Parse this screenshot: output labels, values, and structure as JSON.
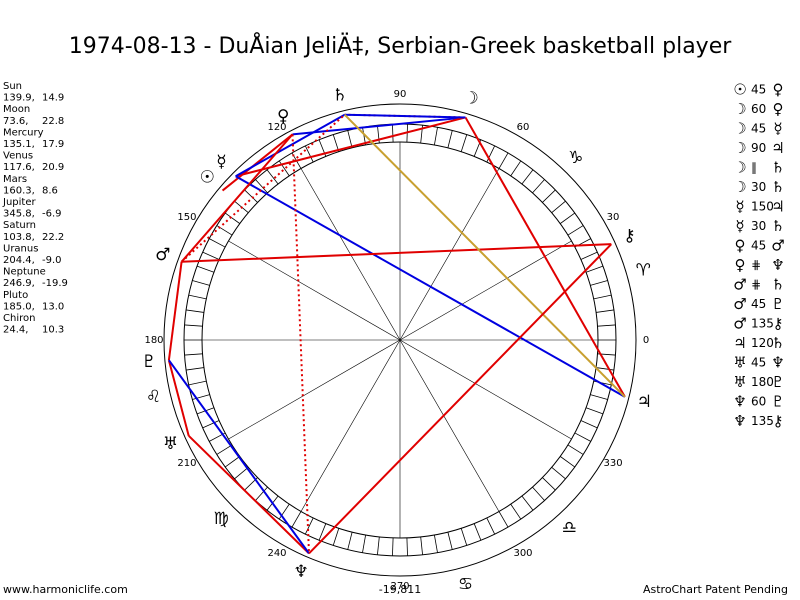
{
  "title": "1974-08-13 - DuÅian JeliÄ‡, Serbian-Greek basketball player",
  "planets": [
    {
      "name": "Sun",
      "glyph": "☉",
      "lon": {
        "value": 139.9,
        "label": "139.9,"
      },
      "lat": 14.9
    },
    {
      "name": "Moon",
      "glyph": "☽",
      "lon": {
        "value": 73.6,
        "label": "73.6,"
      },
      "lat": 22.8
    },
    {
      "name": "Mercury",
      "glyph": "☿",
      "lon": {
        "value": 135.1,
        "label": "135.1,"
      },
      "lat": 17.9
    },
    {
      "name": "Venus",
      "glyph": "♀",
      "lon": {
        "value": 117.6,
        "label": "117.6,"
      },
      "lat": 20.9
    },
    {
      "name": "Mars",
      "glyph": "♂",
      "lon": {
        "value": 160.3,
        "label": "160.3,"
      },
      "lat": 8.6
    },
    {
      "name": "Jupiter",
      "glyph": "♃",
      "lon": {
        "value": 345.8,
        "label": "345.8,"
      },
      "lat": -6.9
    },
    {
      "name": "Saturn",
      "glyph": "♄",
      "lon": {
        "value": 103.8,
        "label": "103.8,"
      },
      "lat": 22.2
    },
    {
      "name": "Uranus",
      "glyph": "♅",
      "lon": {
        "value": 204.4,
        "label": "204.4,"
      },
      "lat": {
        "value": -9,
        "label": "-9.0"
      }
    },
    {
      "name": "Neptune",
      "glyph": "♆",
      "lon": {
        "value": 246.9,
        "label": "246.9,"
      },
      "lat": -19.9
    },
    {
      "name": "Pluto",
      "glyph": "♇",
      "lon": {
        "value": 185,
        "label": "185.0,"
      },
      "lat": {
        "value": 13,
        "label": "13.0"
      }
    },
    {
      "name": "Chiron",
      "glyph": "⚷",
      "lon": {
        "value": 24.4,
        "label": "24.4,"
      },
      "lat": 10.3
    }
  ],
  "degree_labels": [
    0,
    30,
    60,
    90,
    120,
    150,
    180,
    210,
    240,
    270,
    300,
    330
  ],
  "signs": [
    "♈",
    "♑",
    "♌",
    "♍",
    "♋",
    "♎"
  ],
  "aspects": [
    {
      "from": "☉",
      "aspect": 45,
      "to": "♀",
      "color": "#e00000"
    },
    {
      "from": "☽",
      "aspect": 60,
      "to": "♀",
      "color": "#0000e0"
    },
    {
      "from": "☽",
      "aspect": 45,
      "to": "☿",
      "color": "#e00000"
    },
    {
      "from": "☽",
      "aspect": 90,
      "to": "♃",
      "color": "#e00000"
    },
    {
      "from": "☽",
      "aspect": "∥",
      "to": "♄",
      "color": "#e00000"
    },
    {
      "from": "☽",
      "aspect": 30,
      "to": "♄",
      "color": "#0000e0"
    },
    {
      "from": "☿",
      "aspect": 150,
      "to": "♃",
      "color": "#0000e0"
    },
    {
      "from": "☿",
      "aspect": 30,
      "to": "♄",
      "color": "#0000e0"
    },
    {
      "from": "♀",
      "aspect": 45,
      "to": "♂",
      "color": "#e00000"
    },
    {
      "from": "♀",
      "aspect": "⋕",
      "to": "♆",
      "color": "#e00000"
    },
    {
      "from": "♂",
      "aspect": "⋕",
      "to": "♄",
      "color": "#e00000"
    },
    {
      "from": "♂",
      "aspect": 45,
      "to": "♇",
      "color": "#e00000"
    },
    {
      "from": "♂",
      "aspect": 135,
      "to": "⚷",
      "color": "#e00000"
    },
    {
      "from": "♃",
      "aspect": 120,
      "to": "♄",
      "color": "#c8a030"
    },
    {
      "from": "♅",
      "aspect": 45,
      "to": "♆",
      "color": "#e00000"
    },
    {
      "from": "♅",
      "aspect": 180,
      "to": "♇",
      "color": "#e00000"
    },
    {
      "from": "♆",
      "aspect": 60,
      "to": "♇",
      "color": "#0000e0"
    },
    {
      "from": "♆",
      "aspect": 135,
      "to": "⚷",
      "color": "#e00000"
    }
  ],
  "bottom_value": "-19,811",
  "footer_left": "www.harmoniclife.com",
  "footer_right": "AstroChart Patent Pending"
}
